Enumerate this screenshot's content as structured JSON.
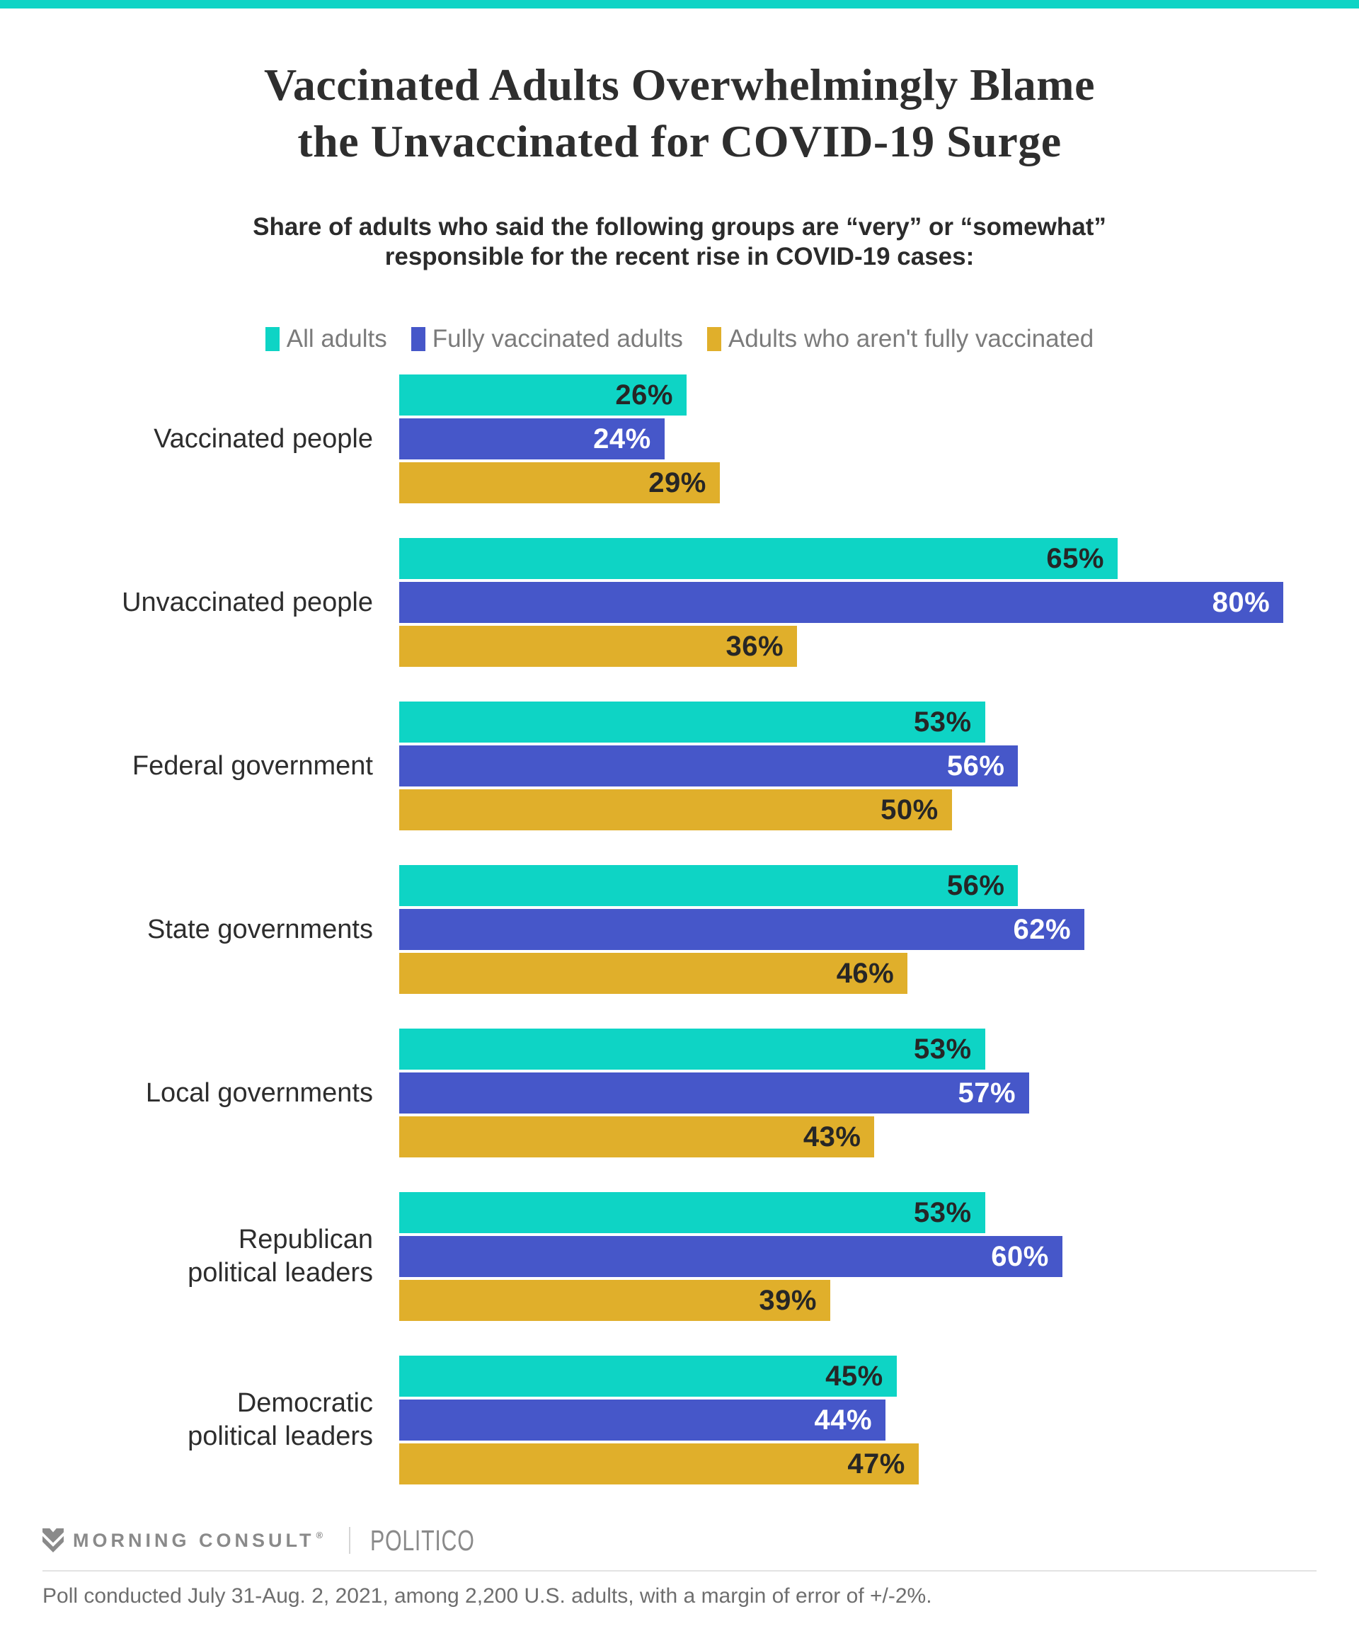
{
  "page": {
    "accent_color": "#0fd4c5",
    "background": "#ffffff"
  },
  "header": {
    "title_line1": "Vaccinated Adults Overwhelmingly Blame",
    "title_line2": "the Unvaccinated for COVID-19 Surge",
    "subtitle_line1": "Share of adults who said the following groups are “very” or “somewhat”",
    "subtitle_line2": "responsible for the recent rise in COVID-19 cases:"
  },
  "chart_data": {
    "type": "bar",
    "orientation": "horizontal",
    "title": "Vaccinated Adults Overwhelmingly Blame the Unvaccinated for COVID-19 Surge",
    "subtitle": "Share of adults who said the following groups are “very” or “somewhat” responsible for the recent rise in COVID-19 cases:",
    "categories": [
      "Vaccinated people",
      "Unvaccinated people",
      "Federal government",
      "State governments",
      "Local governments",
      "Republican\npolitical leaders",
      "Democratic\npolitical leaders"
    ],
    "series": [
      {
        "name": "All adults",
        "color": "#0ed4c5",
        "label_color": "#262626",
        "values": [
          26,
          65,
          53,
          56,
          53,
          53,
          45
        ]
      },
      {
        "name": "Fully vaccinated adults",
        "color": "#4657c9",
        "label_color": "#ffffff",
        "values": [
          24,
          80,
          56,
          62,
          57,
          60,
          44
        ]
      },
      {
        "name": "Adults who aren't fully vaccinated",
        "color": "#e0af2b",
        "label_color": "#262626",
        "values": [
          29,
          36,
          50,
          46,
          43,
          39,
          47
        ]
      }
    ],
    "value_suffix": "%",
    "xlim": [
      0,
      83
    ],
    "grid": false,
    "legend_position": "top"
  },
  "footer": {
    "brand1": "MORNING CONSULT",
    "brand1_mark": "®",
    "brand2": "POLITICO",
    "note": "Poll conducted July 31-Aug. 2, 2021, among 2,200 U.S. adults, with a margin of error of +/-2%."
  }
}
